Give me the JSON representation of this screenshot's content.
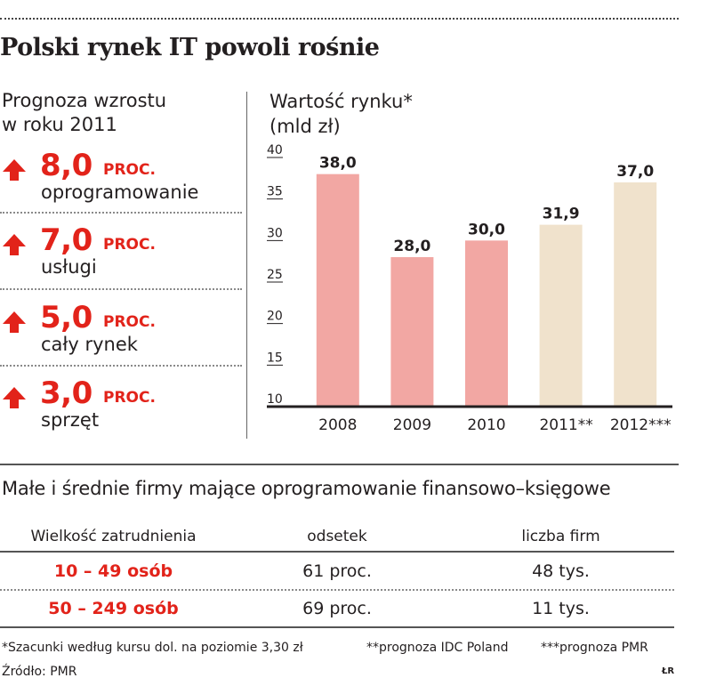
{
  "title": "Polski rynek IT powoli rośnie",
  "growth": {
    "heading_line1": "Prognoza wzrostu",
    "heading_line2": "w roku 2011",
    "items": [
      {
        "value": "8,0",
        "unit": "PROC.",
        "label": "oprogramowanie"
      },
      {
        "value": "7,0",
        "unit": "PROC.",
        "label": "usługi"
      },
      {
        "value": "5,0",
        "unit": "PROC.",
        "label": "cały rynek"
      },
      {
        "value": "3,0",
        "unit": "PROC.",
        "label": "sprzęt"
      }
    ],
    "icon": "arrow-up-icon"
  },
  "chart_heading_line1": "Wartość rynku*",
  "chart_heading_line2": "(mld zł)",
  "chart_data": {
    "type": "bar",
    "categories": [
      "2008",
      "2009",
      "2010",
      "2011**",
      "2012***"
    ],
    "values": [
      38.0,
      28.0,
      30.0,
      31.9,
      37.0
    ],
    "value_labels": [
      "38,0",
      "28,0",
      "30,0",
      "31,9",
      "37,0"
    ],
    "category_kind": [
      "actual",
      "actual",
      "actual",
      "forecast",
      "forecast"
    ],
    "ylim": [
      10,
      40
    ],
    "yticks": [
      10,
      15,
      20,
      25,
      30,
      35,
      40
    ],
    "title": "Wartość rynku*",
    "ylabel": "(mld zł)",
    "xlabel": "",
    "grid": false,
    "colors": {
      "actual": "#f2a7a3",
      "forecast": "#f0e2cc",
      "axis": "#231f20"
    }
  },
  "table": {
    "title": "Małe i średnie firmy mające oprogramowanie finansowo–księgowe",
    "headers": [
      "Wielkość zatrudnienia",
      "odsetek",
      "liczba firm"
    ],
    "rows": [
      [
        "10 – 49 osób",
        "61 proc.",
        "48 tys."
      ],
      [
        "50 – 249 osób",
        "69 proc.",
        "11 tys."
      ]
    ]
  },
  "footnotes": {
    "note1": "*Szacunki według kursu dol. na poziomie 3,30 zł",
    "note2": "**prognoza IDC Poland",
    "note3": "***prognoza PMR",
    "source": "Źródło: PMR",
    "initials": "ŁR"
  },
  "colors": {
    "accent_red": "#e2231a",
    "text": "#231f20"
  }
}
